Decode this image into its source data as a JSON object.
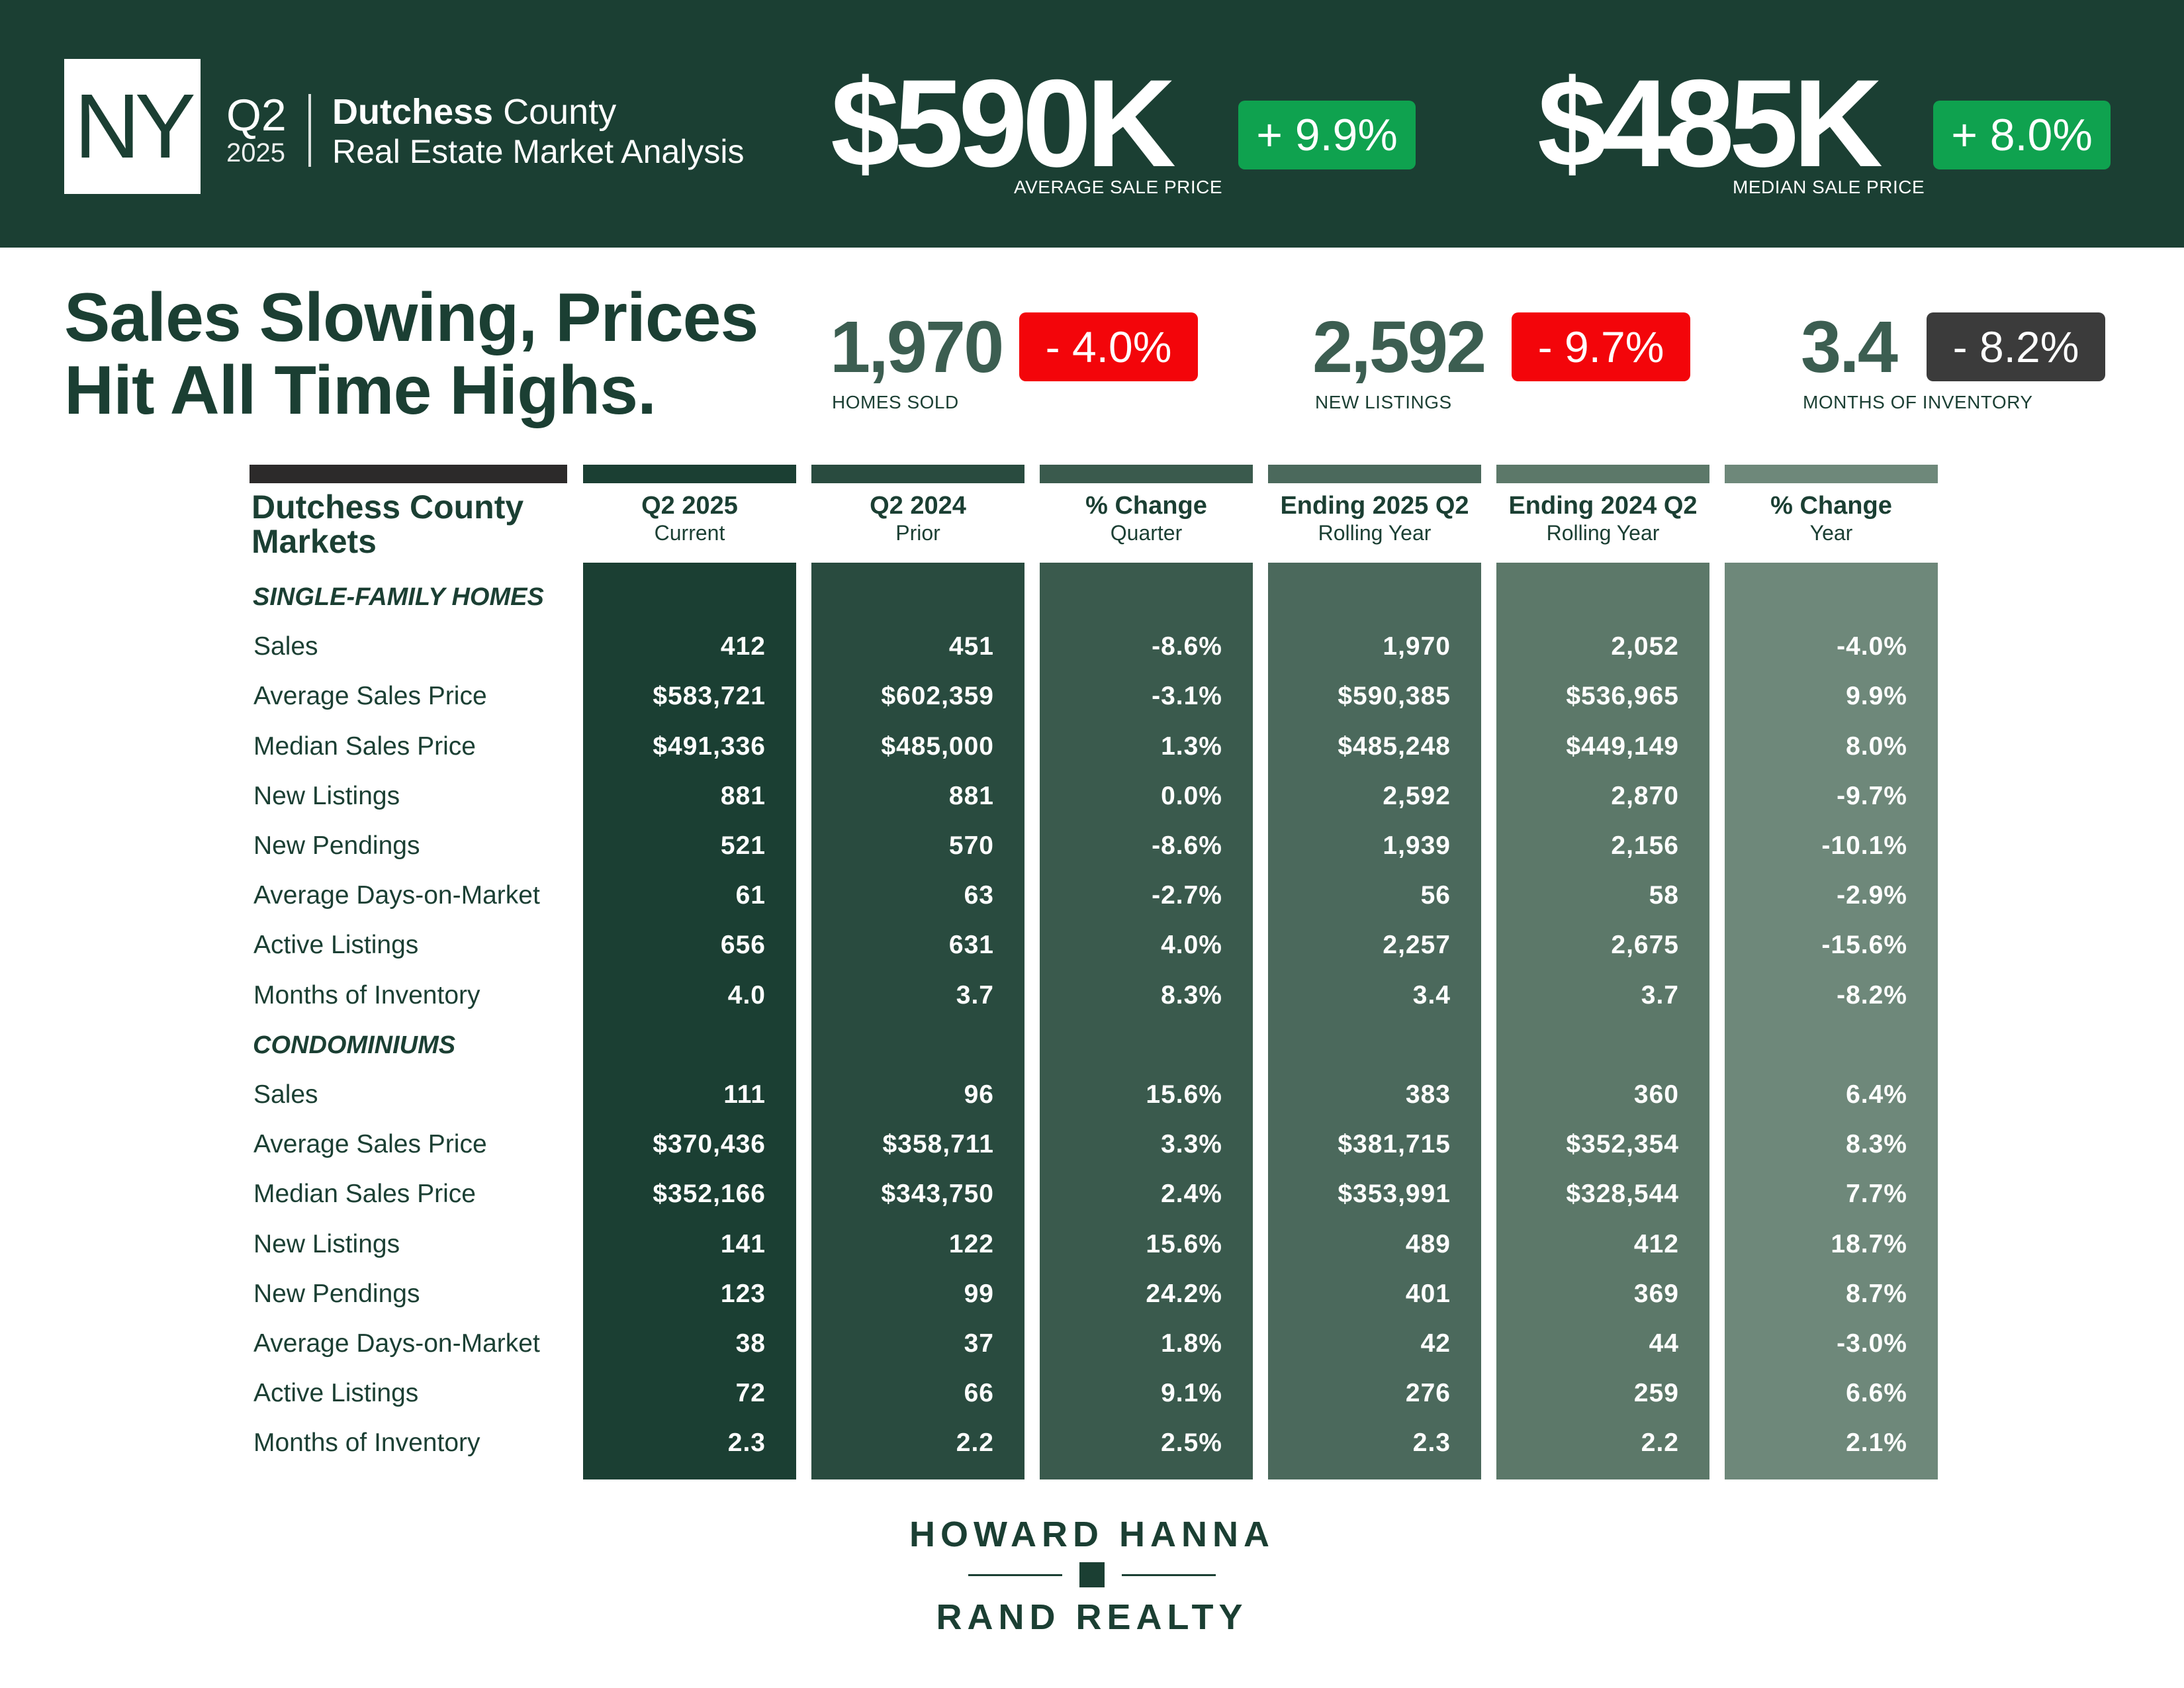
{
  "header": {
    "state": "NY",
    "quarter": "Q2",
    "year": "2025",
    "county_bold": "Dutchess",
    "county_rest": " County",
    "subtitle": "Real Estate Market Analysis",
    "avg_price": "$590K",
    "avg_change": "+ 9.9%",
    "avg_label": "AVERAGE SALE PRICE",
    "median_price": "$485K",
    "median_change": "+ 8.0%",
    "median_label": "MEDIAN SALE PRICE",
    "colors": {
      "band": "#1b3f33",
      "positive_badge": "#0fa24f"
    }
  },
  "headline": {
    "line1": "Sales Slowing, Prices",
    "line2": "Hit All Time Highs."
  },
  "kpis": [
    {
      "value": "1,970",
      "change": "- 4.0%",
      "label": "HOMES SOLD",
      "badge_color": "#f3050a"
    },
    {
      "value": "2,592",
      "change": "- 9.7%",
      "label": "NEW LISTINGS",
      "badge_color": "#f3050a"
    },
    {
      "value": "3.4",
      "change": "- 8.2%",
      "label": "MONTHS OF INVENTORY",
      "badge_color": "#3b3b3b"
    }
  ],
  "table": {
    "title_line1": "Dutchess County",
    "title_line2": "Markets",
    "columns": [
      {
        "title": "Q2 2025",
        "sub": "Current",
        "color": "#1b3f33"
      },
      {
        "title": "Q2 2024",
        "sub": "Prior",
        "color": "#294b3f"
      },
      {
        "title": "% Change",
        "sub": "Quarter",
        "color": "#3a5a4d"
      },
      {
        "title": "Ending 2025 Q2",
        "sub": "Rolling Year",
        "color": "#4b695c"
      },
      {
        "title": "Ending 2024 Q2",
        "sub": "Rolling Year",
        "color": "#5c7869"
      },
      {
        "title": "% Change",
        "sub": "Year",
        "color": "#6e887a"
      }
    ],
    "sections": [
      {
        "name": "SINGLE-FAMILY HOMES",
        "rows": [
          {
            "label": "Sales",
            "values": [
              "412",
              "451",
              "-8.6%",
              "1,970",
              "2,052",
              "-4.0%"
            ]
          },
          {
            "label": "Average Sales Price",
            "values": [
              "$583,721",
              "$602,359",
              "-3.1%",
              "$590,385",
              "$536,965",
              "9.9%"
            ]
          },
          {
            "label": "Median Sales Price",
            "values": [
              "$491,336",
              "$485,000",
              "1.3%",
              "$485,248",
              "$449,149",
              "8.0%"
            ]
          },
          {
            "label": "New Listings",
            "values": [
              "881",
              "881",
              "0.0%",
              "2,592",
              "2,870",
              "-9.7%"
            ]
          },
          {
            "label": "New Pendings",
            "values": [
              "521",
              "570",
              "-8.6%",
              "1,939",
              "2,156",
              "-10.1%"
            ]
          },
          {
            "label": "Average Days-on-Market",
            "values": [
              "61",
              "63",
              "-2.7%",
              "56",
              "58",
              "-2.9%"
            ]
          },
          {
            "label": "Active Listings",
            "values": [
              "656",
              "631",
              "4.0%",
              "2,257",
              "2,675",
              "-15.6%"
            ]
          },
          {
            "label": "Months of Inventory",
            "values": [
              "4.0",
              "3.7",
              "8.3%",
              "3.4",
              "3.7",
              "-8.2%"
            ]
          }
        ]
      },
      {
        "name": "CONDOMINIUMS",
        "rows": [
          {
            "label": "Sales",
            "values": [
              "111",
              "96",
              "15.6%",
              "383",
              "360",
              "6.4%"
            ]
          },
          {
            "label": "Average Sales Price",
            "values": [
              "$370,436",
              "$358,711",
              "3.3%",
              "$381,715",
              "$352,354",
              "8.3%"
            ]
          },
          {
            "label": "Median Sales Price",
            "values": [
              "$352,166",
              "$343,750",
              "2.4%",
              "$353,991",
              "$328,544",
              "7.7%"
            ]
          },
          {
            "label": "New Listings",
            "values": [
              "141",
              "122",
              "15.6%",
              "489",
              "412",
              "18.7%"
            ]
          },
          {
            "label": "New Pendings",
            "values": [
              "123",
              "99",
              "24.2%",
              "401",
              "369",
              "8.7%"
            ]
          },
          {
            "label": "Average Days-on-Market",
            "values": [
              "38",
              "37",
              "1.8%",
              "42",
              "44",
              "-3.0%"
            ]
          },
          {
            "label": "Active Listings",
            "values": [
              "72",
              "66",
              "9.1%",
              "276",
              "259",
              "6.6%"
            ]
          },
          {
            "label": "Months of Inventory",
            "values": [
              "2.3",
              "2.2",
              "2.5%",
              "2.3",
              "2.2",
              "2.1%"
            ]
          }
        ]
      }
    ]
  },
  "logo": {
    "line1": "HOWARD HANNA",
    "line2": "RAND REALTY"
  }
}
